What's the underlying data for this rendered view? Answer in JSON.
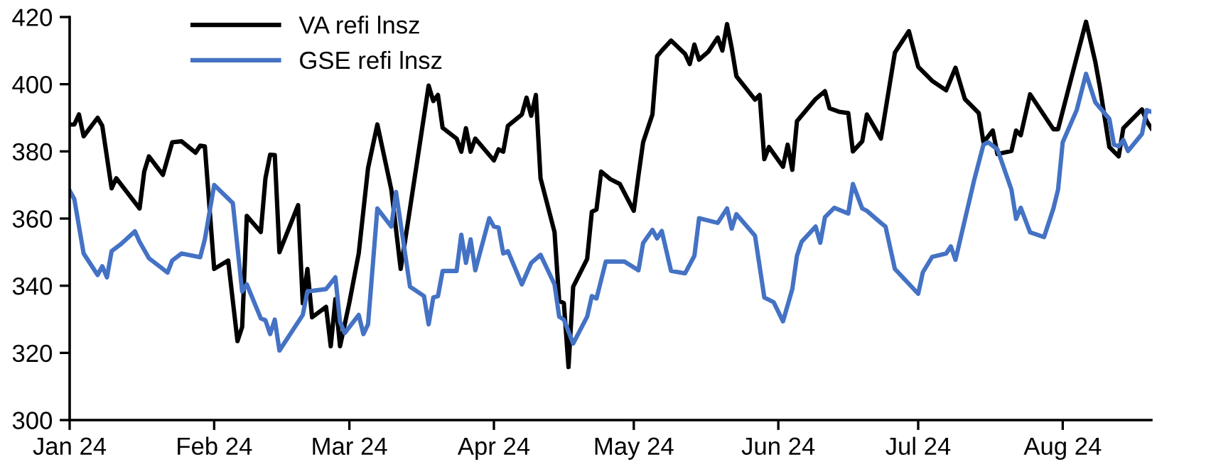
{
  "chart_data": {
    "type": "line",
    "xlim": [
      "2024-01-01",
      "2024-08-20"
    ],
    "xticks": [
      {
        "value": "2024-01-01",
        "label": "Jan 24"
      },
      {
        "value": "2024-02-01",
        "label": "Feb 24"
      },
      {
        "value": "2024-03-01",
        "label": "Mar 24"
      },
      {
        "value": "2024-04-01",
        "label": "Apr 24"
      },
      {
        "value": "2024-05-01",
        "label": "May 24"
      },
      {
        "value": "2024-06-01",
        "label": "Jun 24"
      },
      {
        "value": "2024-07-01",
        "label": "Jul 24"
      },
      {
        "value": "2024-08-01",
        "label": "Aug 24"
      }
    ],
    "ylim": [
      300,
      420
    ],
    "yticks": [
      300,
      320,
      340,
      360,
      380,
      400,
      420
    ],
    "grid": false,
    "legend": "top left",
    "marker": "none",
    "line_style": "solid",
    "series": [
      {
        "name": "VA refi lnsz",
        "color": "#000000",
        "x": [
          "2024-01-01",
          "2024-01-02",
          "2024-01-03",
          "2024-01-04",
          "2024-01-07",
          "2024-01-08",
          "2024-01-10",
          "2024-01-11",
          "2024-01-16",
          "2024-01-17",
          "2024-01-18",
          "2024-01-21",
          "2024-01-23",
          "2024-01-25",
          "2024-01-28",
          "2024-01-29",
          "2024-01-30",
          "2024-02-01",
          "2024-02-04",
          "2024-02-06",
          "2024-02-07",
          "2024-02-08",
          "2024-02-11",
          "2024-02-12",
          "2024-02-13",
          "2024-02-14",
          "2024-02-15",
          "2024-02-19",
          "2024-02-20",
          "2024-02-21",
          "2024-02-22",
          "2024-02-25",
          "2024-02-26",
          "2024-02-27",
          "2024-02-28",
          "2024-03-01",
          "2024-03-03",
          "2024-03-05",
          "2024-03-07",
          "2024-03-10",
          "2024-03-12",
          "2024-03-13",
          "2024-03-18",
          "2024-03-19",
          "2024-03-20",
          "2024-03-21",
          "2024-03-24",
          "2024-03-25",
          "2024-03-26",
          "2024-03-27",
          "2024-03-28",
          "2024-04-01",
          "2024-04-02",
          "2024-04-03",
          "2024-04-04",
          "2024-04-07",
          "2024-04-08",
          "2024-04-09",
          "2024-04-10",
          "2024-04-11",
          "2024-04-14",
          "2024-04-15",
          "2024-04-16",
          "2024-04-17",
          "2024-04-18",
          "2024-04-21",
          "2024-04-22",
          "2024-04-23",
          "2024-04-24",
          "2024-04-26",
          "2024-04-28",
          "2024-05-01",
          "2024-05-02",
          "2024-05-03",
          "2024-05-05",
          "2024-05-06",
          "2024-05-07",
          "2024-05-09",
          "2024-05-12",
          "2024-05-13",
          "2024-05-14",
          "2024-05-15",
          "2024-05-17",
          "2024-05-19",
          "2024-05-20",
          "2024-05-21",
          "2024-05-22",
          "2024-05-23",
          "2024-05-27",
          "2024-05-28",
          "2024-05-29",
          "2024-05-30",
          "2024-06-02",
          "2024-06-03",
          "2024-06-04",
          "2024-06-05",
          "2024-06-09",
          "2024-06-11",
          "2024-06-12",
          "2024-06-14",
          "2024-06-16",
          "2024-06-17",
          "2024-06-19",
          "2024-06-20",
          "2024-06-23",
          "2024-06-26",
          "2024-06-29",
          "2024-07-01",
          "2024-07-04",
          "2024-07-07",
          "2024-07-09",
          "2024-07-11",
          "2024-07-14",
          "2024-07-15",
          "2024-07-17",
          "2024-07-18",
          "2024-07-21",
          "2024-07-22",
          "2024-07-23",
          "2024-07-25",
          "2024-07-30",
          "2024-07-31",
          "2024-08-04",
          "2024-08-06",
          "2024-08-08",
          "2024-08-09",
          "2024-08-11",
          "2024-08-13",
          "2024-08-14",
          "2024-08-18",
          "2024-08-19",
          "2024-08-20"
        ],
        "values": [
          388,
          388,
          391,
          384.5,
          390,
          387.6,
          369,
          372,
          363,
          374,
          378.5,
          373,
          382.7,
          383,
          379.6,
          381.7,
          381.5,
          345,
          347.5,
          323.5,
          327.7,
          360.8,
          356,
          372,
          379,
          378.9,
          350,
          364,
          334.8,
          345,
          330.6,
          333.7,
          322,
          336,
          322,
          335,
          349.6,
          375,
          388,
          368.6,
          345,
          353.8,
          399.6,
          395,
          396.8,
          387,
          383.8,
          379.9,
          386.9,
          379.9,
          383.8,
          377.3,
          380.6,
          379.9,
          387.6,
          391,
          396,
          390.6,
          396.8,
          372,
          356,
          335.5,
          334.8,
          315.8,
          339.7,
          348,
          362,
          362.7,
          374,
          371.7,
          370.3,
          362.3,
          372.8,
          382.7,
          391,
          408.3,
          410,
          413,
          409,
          406,
          411.8,
          407.3,
          409.7,
          413.9,
          410,
          417.9,
          410.8,
          402.4,
          395.4,
          396.8,
          377.7,
          381.3,
          375.4,
          382,
          374.5,
          389,
          395.6,
          397.9,
          392.8,
          391.8,
          391.4,
          380,
          383,
          391,
          383.8,
          409.4,
          415.8,
          405.2,
          401,
          398.2,
          404.9,
          395.6,
          391.4,
          382.7,
          386.2,
          379.2,
          380.1,
          386.2,
          384.8,
          397,
          386.6,
          386.6,
          408,
          418.6,
          406.6,
          398.9,
          381.3,
          378.5,
          386.9,
          392.5,
          389,
          386.9
        ]
      },
      {
        "name": "GSE refi lnsz",
        "color": "#4472c4",
        "x": [
          "2024-01-01",
          "2024-01-02",
          "2024-01-04",
          "2024-01-07",
          "2024-01-08",
          "2024-01-09",
          "2024-01-10",
          "2024-01-12",
          "2024-01-15",
          "2024-01-16",
          "2024-01-18",
          "2024-01-22",
          "2024-01-23",
          "2024-01-25",
          "2024-01-29",
          "2024-01-30",
          "2024-02-01",
          "2024-02-05",
          "2024-02-07",
          "2024-02-08",
          "2024-02-11",
          "2024-02-12",
          "2024-02-13",
          "2024-02-14",
          "2024-02-15",
          "2024-02-20",
          "2024-02-21",
          "2024-02-25",
          "2024-02-27",
          "2024-02-28",
          "2024-02-29",
          "2024-03-03",
          "2024-03-04",
          "2024-03-05",
          "2024-03-07",
          "2024-03-10",
          "2024-03-11",
          "2024-03-14",
          "2024-03-17",
          "2024-03-18",
          "2024-03-19",
          "2024-03-20",
          "2024-03-21",
          "2024-03-24",
          "2024-03-25",
          "2024-03-26",
          "2024-03-27",
          "2024-03-28",
          "2024-03-31",
          "2024-04-01",
          "2024-04-02",
          "2024-04-03",
          "2024-04-04",
          "2024-04-07",
          "2024-04-09",
          "2024-04-11",
          "2024-04-14",
          "2024-04-15",
          "2024-04-16",
          "2024-04-18",
          "2024-04-21",
          "2024-04-22",
          "2024-04-23",
          "2024-04-25",
          "2024-04-29",
          "2024-05-02",
          "2024-05-03",
          "2024-05-05",
          "2024-05-06",
          "2024-05-07",
          "2024-05-09",
          "2024-05-12",
          "2024-05-14",
          "2024-05-15",
          "2024-05-19",
          "2024-05-21",
          "2024-05-22",
          "2024-05-23",
          "2024-05-27",
          "2024-05-29",
          "2024-05-31",
          "2024-06-02",
          "2024-06-04",
          "2024-06-05",
          "2024-06-06",
          "2024-06-09",
          "2024-06-10",
          "2024-06-11",
          "2024-06-13",
          "2024-06-16",
          "2024-06-17",
          "2024-06-19",
          "2024-06-20",
          "2024-06-23",
          "2024-06-24",
          "2024-06-26",
          "2024-07-01",
          "2024-07-02",
          "2024-07-04",
          "2024-07-07",
          "2024-07-08",
          "2024-07-09",
          "2024-07-13",
          "2024-07-15",
          "2024-07-16",
          "2024-07-18",
          "2024-07-21",
          "2024-07-22",
          "2024-07-23",
          "2024-07-25",
          "2024-07-28",
          "2024-07-30",
          "2024-07-31",
          "2024-08-01",
          "2024-08-04",
          "2024-08-06",
          "2024-08-08",
          "2024-08-11",
          "2024-08-12",
          "2024-08-13",
          "2024-08-14",
          "2024-08-15",
          "2024-08-18",
          "2024-08-19",
          "2024-08-20"
        ],
        "values": [
          368.3,
          365.8,
          349.6,
          343.2,
          345.8,
          342.5,
          350.3,
          352.4,
          356.2,
          353.1,
          348.2,
          343.9,
          347.5,
          349.6,
          348.5,
          353.8,
          370,
          364.6,
          338.3,
          340.4,
          330.3,
          329.7,
          325.6,
          329.9,
          320.7,
          331.3,
          338.3,
          339,
          342.5,
          329.2,
          325.9,
          331.3,
          325.6,
          328.5,
          363,
          357.6,
          367.9,
          339.7,
          336.9,
          328.5,
          336.5,
          336.9,
          344.4,
          344.4,
          355.2,
          346.8,
          353.8,
          344.6,
          360.1,
          357.6,
          357.3,
          349.6,
          350.3,
          340.4,
          346.8,
          349.2,
          340.4,
          330.8,
          329.9,
          322.8,
          330.8,
          336.9,
          336.2,
          347.2,
          347.2,
          344.6,
          352.7,
          356.6,
          354.1,
          356.3,
          344.4,
          343.7,
          348.9,
          360.1,
          358.7,
          363,
          357,
          361.3,
          354.9,
          336.5,
          335.1,
          329.4,
          339,
          348.9,
          353.1,
          357.6,
          352.8,
          360.4,
          363.2,
          361.5,
          370.3,
          363,
          362.3,
          358.7,
          357.6,
          345,
          337.6,
          344,
          348.6,
          349.6,
          351.7,
          347.7,
          371.4,
          382,
          382.7,
          380.6,
          368.6,
          359.9,
          363.2,
          355.9,
          354.5,
          363,
          368.6,
          382.7,
          392.3,
          403.1,
          394.6,
          389.7,
          382,
          381.5,
          383.4,
          380.1,
          385.2,
          392.3,
          391.8
        ]
      }
    ]
  }
}
